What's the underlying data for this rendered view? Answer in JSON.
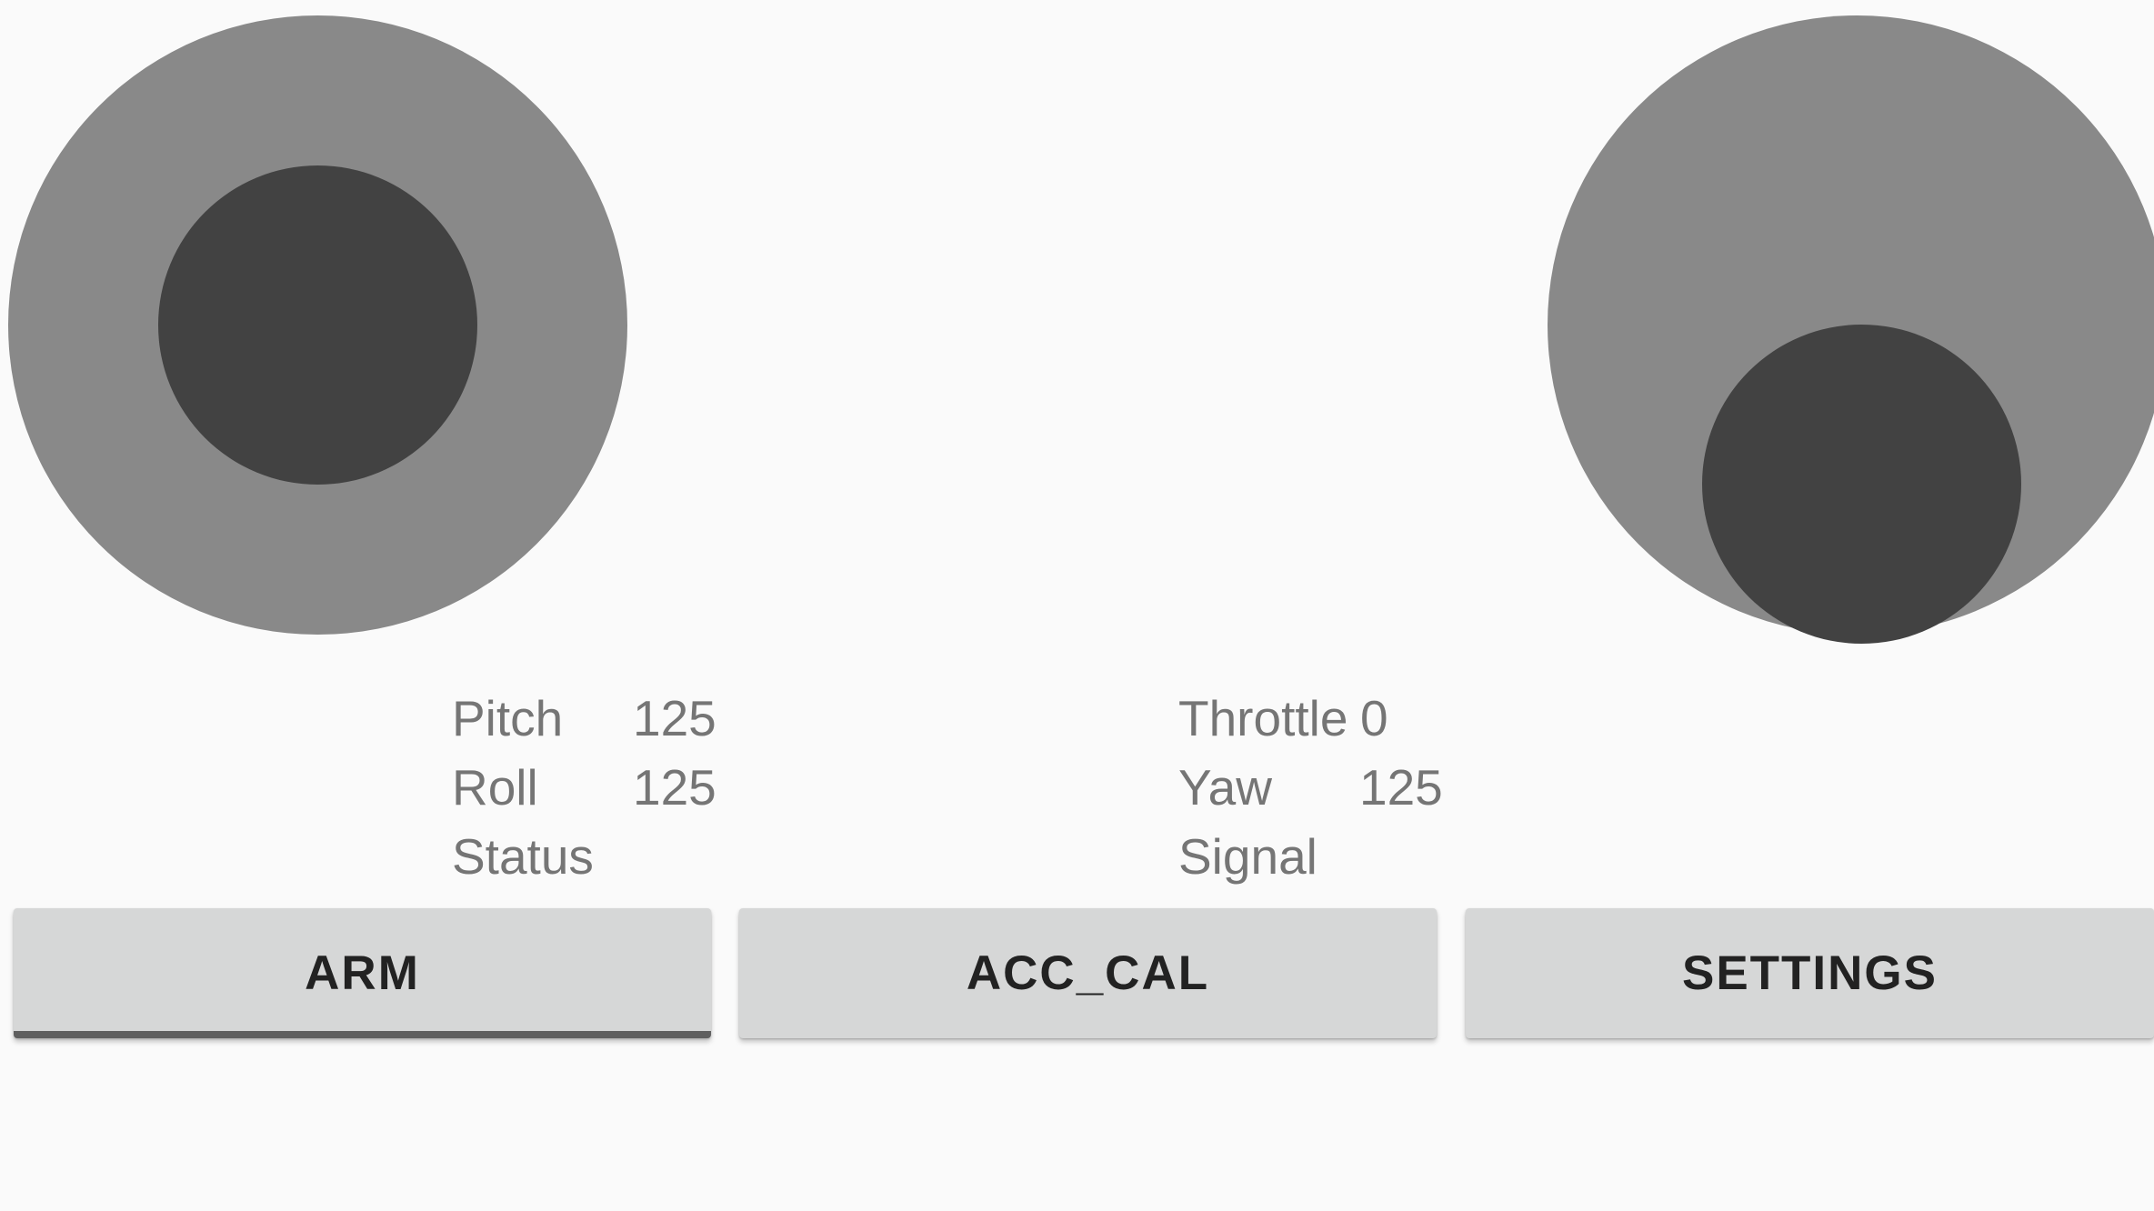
{
  "joysticks": {
    "left": {
      "name": "pitch-roll"
    },
    "right": {
      "name": "throttle-yaw"
    }
  },
  "telemetry_left": {
    "pitch_label": "Pitch",
    "pitch_value": "125",
    "roll_label": "Roll",
    "roll_value": "125",
    "status_label": "Status",
    "status_value": ""
  },
  "telemetry_right": {
    "throttle_label": "Throttle",
    "throttle_value": "0",
    "yaw_label": "Yaw",
    "yaw_value": "125",
    "signal_label": "Signal",
    "signal_value": ""
  },
  "buttons": {
    "arm": "ARM",
    "acc_cal": "ACC_CAL",
    "settings": "SETTINGS"
  },
  "colors": {
    "background": "#fafafa",
    "joystick_base": "#898989",
    "joystick_knob": "#424242",
    "button_bg": "#d6d7d7",
    "text_gray": "#757575",
    "arm_underline": "#5f5f5f"
  }
}
